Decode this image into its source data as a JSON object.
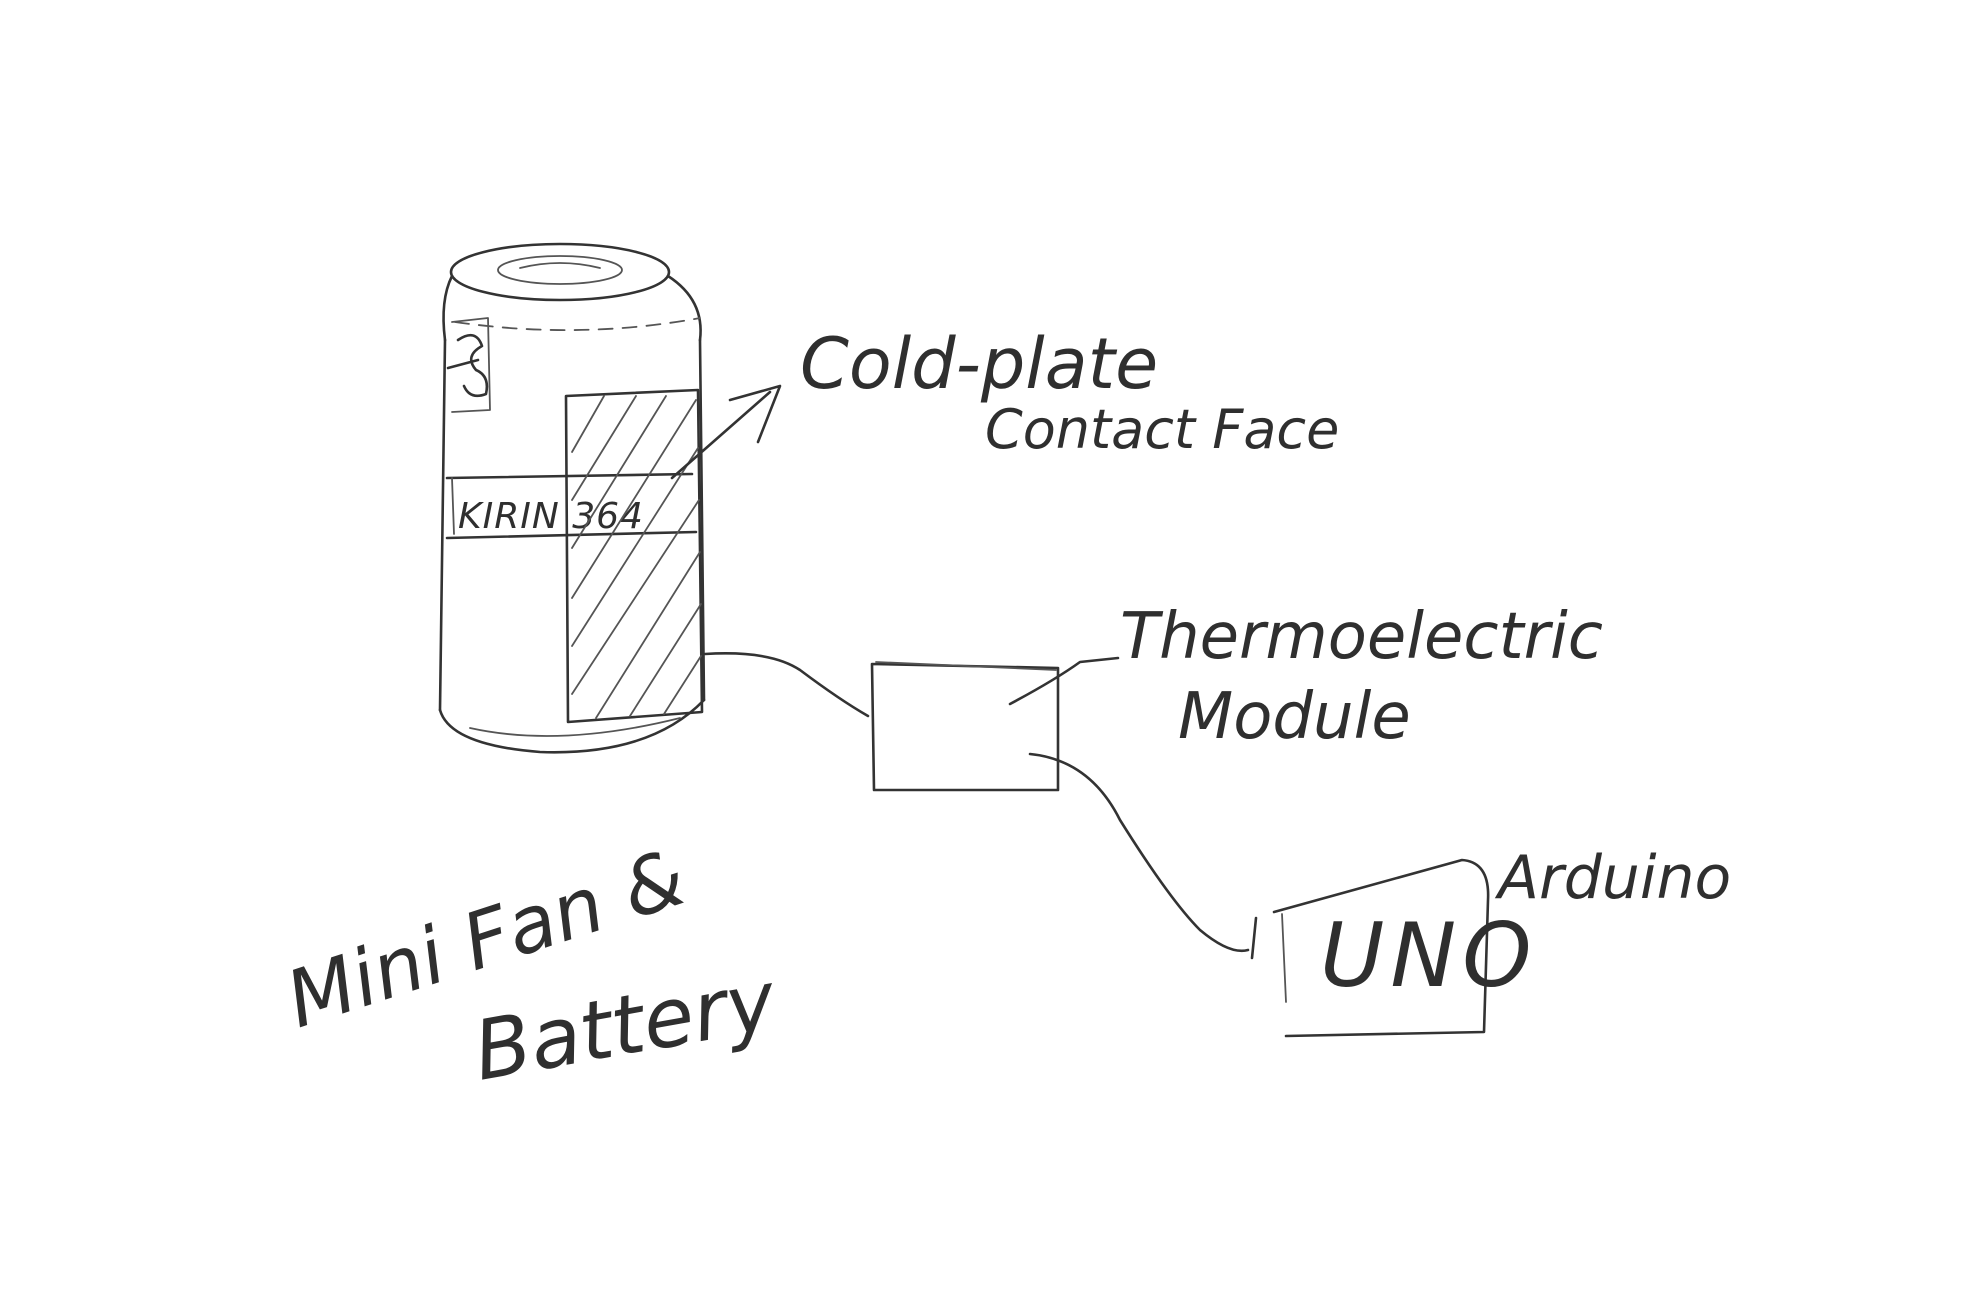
{
  "labels": {
    "cold_plate_line1": "Cold-plate",
    "cold_plate_line2": "Contact Face",
    "thermo_line1": "Thermoelectric",
    "thermo_line2": "Module",
    "arduino": "Arduino",
    "board_text": "UNO",
    "fan_line1": "Mini Fan &",
    "fan_line2": "Battery",
    "can_band_text": "KIRIN 364"
  },
  "colors": {
    "background": "#ffffff",
    "pencil": "#333333"
  }
}
